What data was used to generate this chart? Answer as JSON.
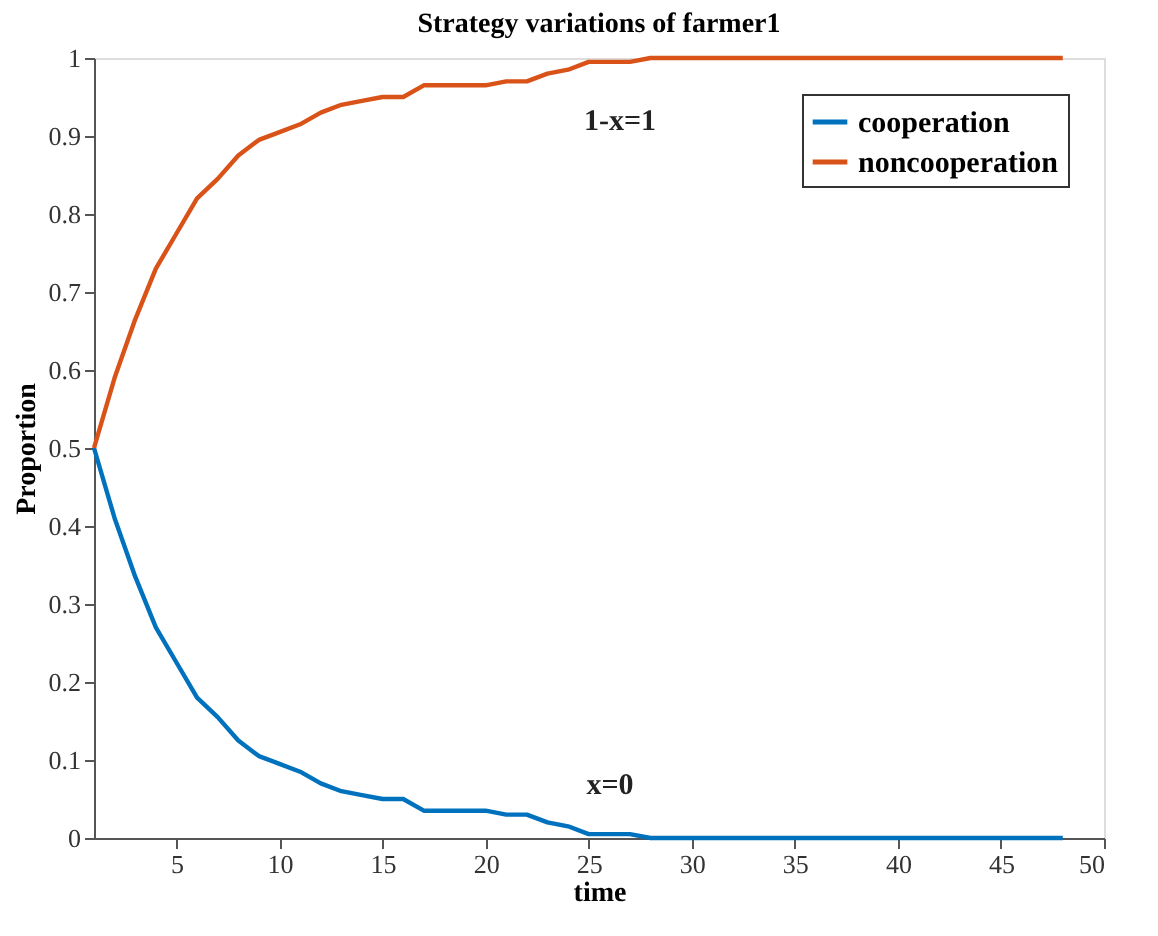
{
  "chart_data": {
    "type": "line",
    "title": "Strategy variations of farmer1",
    "xlabel": "time",
    "ylabel": "Proportion",
    "x": [
      1,
      2,
      3,
      4,
      5,
      6,
      7,
      8,
      9,
      10,
      11,
      12,
      13,
      14,
      15,
      16,
      17,
      18,
      19,
      20,
      21,
      22,
      23,
      24,
      25,
      26,
      27,
      28,
      48
    ],
    "series": [
      {
        "name": "cooperation",
        "color": "#0072bd",
        "values": [
          0.5,
          0.41,
          0.335,
          0.27,
          0.225,
          0.18,
          0.155,
          0.125,
          0.105,
          0.095,
          0.085,
          0.07,
          0.06,
          0.055,
          0.05,
          0.05,
          0.035,
          0.035,
          0.035,
          0.035,
          0.03,
          0.03,
          0.02,
          0.015,
          0.005,
          0.005,
          0.005,
          0,
          0
        ]
      },
      {
        "name": "noncooperation",
        "color": "#d95319",
        "values": [
          0.5,
          0.59,
          0.665,
          0.73,
          0.775,
          0.82,
          0.845,
          0.875,
          0.895,
          0.905,
          0.915,
          0.93,
          0.94,
          0.945,
          0.95,
          0.95,
          0.965,
          0.965,
          0.965,
          0.965,
          0.97,
          0.97,
          0.98,
          0.985,
          0.995,
          0.995,
          0.995,
          1,
          1
        ]
      }
    ],
    "annotations": [
      "1-x=1",
      "x=0"
    ],
    "xlim": [
      1,
      50
    ],
    "xticks": [
      5,
      10,
      15,
      20,
      25,
      30,
      35,
      40,
      45,
      50
    ],
    "ylim": [
      0,
      1
    ],
    "yticks": [
      0,
      0.1,
      0.2,
      0.3,
      0.4,
      0.5,
      0.6,
      0.7,
      0.8,
      0.9,
      1
    ],
    "grid": false,
    "legend": "top right",
    "line_style": "solid",
    "marker": "none"
  }
}
